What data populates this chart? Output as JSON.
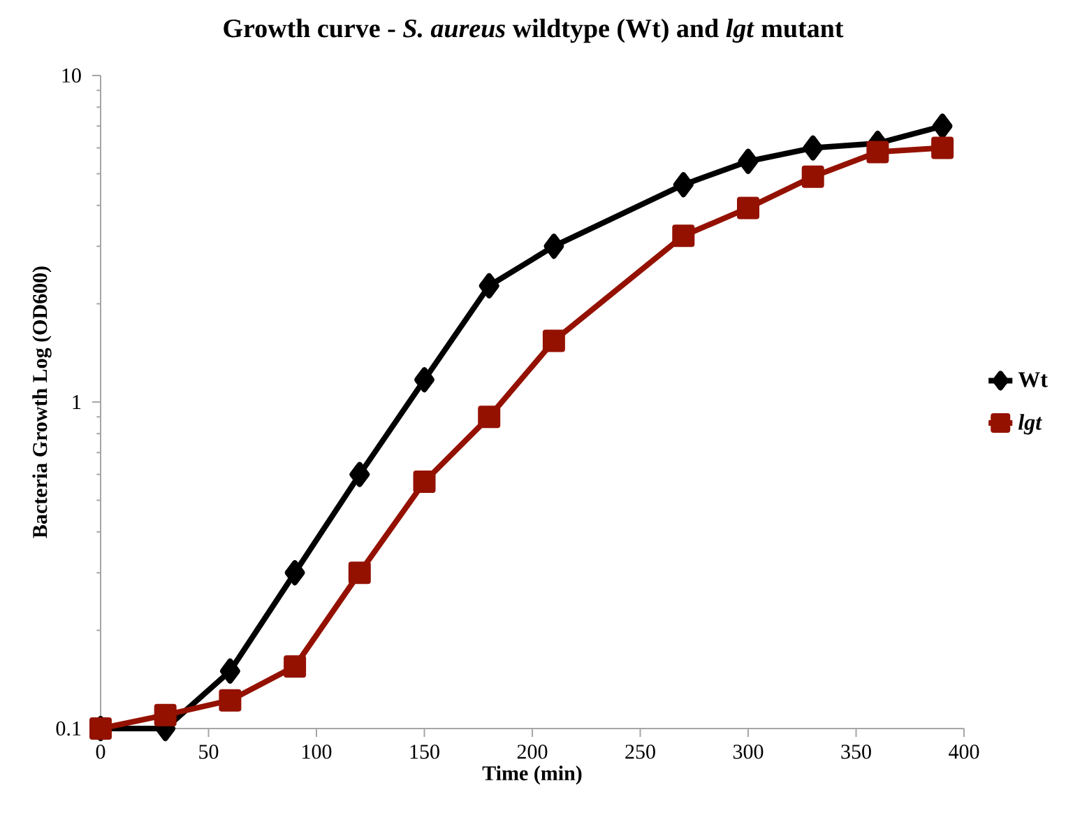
{
  "chart_data": {
    "type": "line",
    "title": "Growth curve - *S. aureus* wildtype (Wt) and *lgt* mutant",
    "xlabel": "Time (min)",
    "ylabel": "Bacteria Growth Log (OD600)",
    "x": [
      0,
      30,
      60,
      90,
      120,
      150,
      180,
      210,
      270,
      300,
      330,
      360,
      390
    ],
    "series": [
      {
        "name": "Wt",
        "color": "#000000",
        "marker": "diamond",
        "values": [
          0.1,
          0.1,
          0.15,
          0.3,
          0.6,
          1.17,
          2.27,
          3.0,
          4.63,
          5.46,
          6.0,
          6.2,
          7.0
        ]
      },
      {
        "name": "*lgt*",
        "color": "#941100",
        "marker": "square",
        "values": [
          0.1,
          0.11,
          0.122,
          0.155,
          0.3,
          0.57,
          0.9,
          1.54,
          3.23,
          3.93,
          4.9,
          5.83,
          6.0
        ]
      }
    ],
    "log": "y",
    "xlim": [
      0,
      400
    ],
    "ylim": [
      0.1,
      10
    ],
    "xticks": [
      0,
      50,
      100,
      150,
      200,
      250,
      300,
      350,
      400
    ],
    "yticks": [
      0.1,
      1,
      10
    ],
    "grid": false,
    "legend": "right",
    "line_style": "solid"
  }
}
